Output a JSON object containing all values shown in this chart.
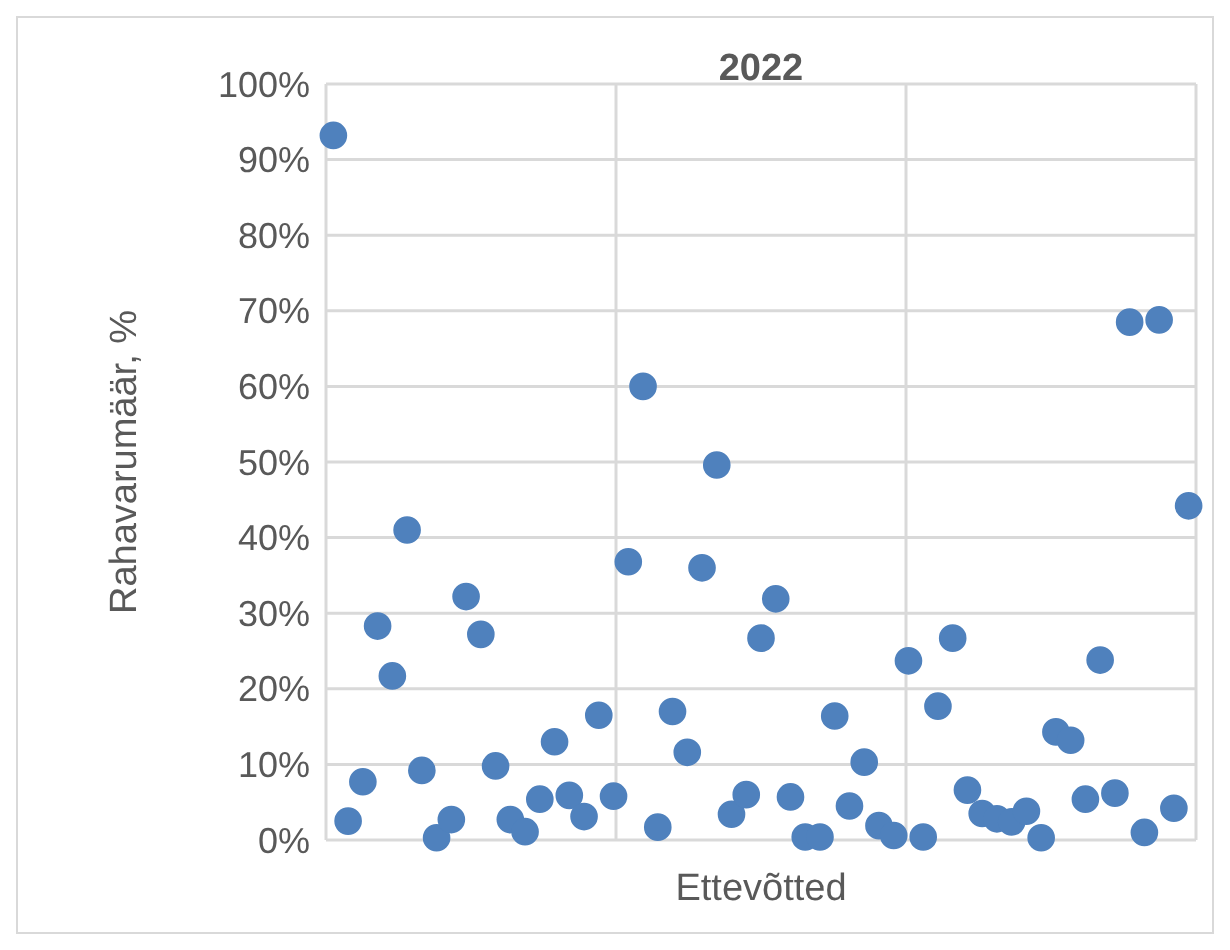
{
  "chart_data": {
    "type": "scatter",
    "title": "2022",
    "xlabel": "Ettevõtted",
    "ylabel": "Rahavarumäär, %",
    "categories": [
      null,
      null,
      null,
      null,
      null,
      null,
      null,
      null,
      null,
      null,
      null,
      null,
      null,
      null,
      null,
      null,
      null,
      null,
      null,
      null,
      null,
      null,
      null,
      null,
      null,
      null,
      null,
      null,
      null,
      null,
      null,
      null,
      null,
      null,
      null,
      null,
      null,
      null,
      null,
      null,
      null,
      null,
      null,
      null,
      null,
      null,
      null,
      null,
      null,
      null,
      null,
      null,
      null,
      null,
      null,
      null,
      null,
      null,
      null
    ],
    "series": [
      {
        "color": "#4f81bd",
        "values": [
          93.2,
          2.5,
          7.7,
          28.3,
          21.7,
          41,
          9.2,
          0.3,
          2.7,
          32.2,
          27.2,
          9.8,
          2.7,
          1.1,
          5.4,
          13,
          5.9,
          3.1,
          16.5,
          5.8,
          36.8,
          60,
          1.7,
          17,
          11.6,
          36,
          49.6,
          3.4,
          6,
          26.7,
          31.9,
          5.7,
          0.4,
          0.4,
          16.4,
          4.5,
          10.3,
          1.9,
          0.6,
          23.7,
          0.4,
          17.7,
          26.7,
          6.6,
          3.5,
          2.8,
          2.4,
          3.8,
          0.3,
          14.3,
          13.2,
          5.4,
          23.8,
          6.2,
          68.5,
          1,
          68.8,
          4.2,
          44.2
        ]
      }
    ],
    "ylim": [
      0,
      100
    ],
    "yticks": [
      {
        "value": 0,
        "label": "0%"
      },
      {
        "value": 10,
        "label": "10%"
      },
      {
        "value": 20,
        "label": "20%"
      },
      {
        "value": 30,
        "label": "30%"
      },
      {
        "value": 40,
        "label": "40%"
      },
      {
        "value": 50,
        "label": "50%"
      },
      {
        "value": 60,
        "label": "60%"
      },
      {
        "value": 70,
        "label": "70%"
      },
      {
        "value": 80,
        "label": "80%"
      },
      {
        "value": 90,
        "label": "90%"
      },
      {
        "value": 100,
        "label": "100%"
      }
    ],
    "grid": true,
    "marker": "circle"
  }
}
